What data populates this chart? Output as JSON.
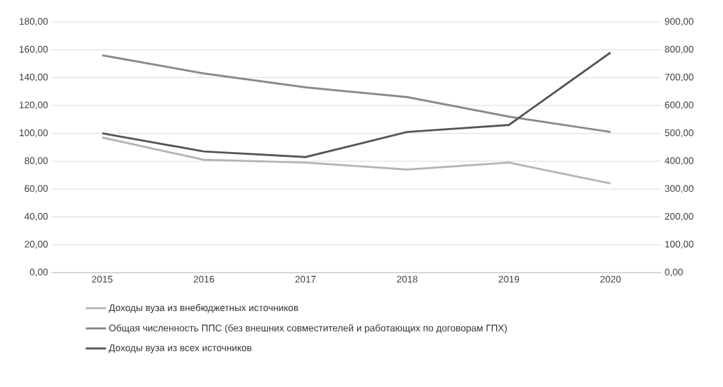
{
  "chart_data": {
    "type": "line",
    "categories": [
      "2015",
      "2016",
      "2017",
      "2018",
      "2019",
      "2020"
    ],
    "series": [
      {
        "name": "Доходы вуза из внебюджетных источников",
        "color": "#b4b4b4",
        "values": [
          97,
          81,
          79,
          74,
          79,
          64
        ]
      },
      {
        "name": "Общая численность ППС (без внешних совместителей и работающих по договорам ГПХ)",
        "color": "#8a8a8a",
        "values": [
          156,
          143,
          133,
          126,
          112,
          101
        ]
      },
      {
        "name": "Доходы вуза из всех источников",
        "color": "#555555",
        "axis": "y2",
        "values": [
          500,
          435,
          415,
          505,
          530,
          790
        ]
      }
    ],
    "ylim": [
      0,
      180
    ],
    "yticks": [
      {
        "value": 0,
        "label": "0,00"
      },
      {
        "value": 20,
        "label": "20,00"
      },
      {
        "value": 40,
        "label": "40,00"
      },
      {
        "value": 60,
        "label": "60,00"
      },
      {
        "value": 80,
        "label": "80,00"
      },
      {
        "value": 100,
        "label": "100,00"
      },
      {
        "value": 120,
        "label": "120,00"
      },
      {
        "value": 140,
        "label": "140,00"
      },
      {
        "value": 160,
        "label": "160,00"
      },
      {
        "value": 180,
        "label": "180,00"
      }
    ],
    "y2lim": [
      0,
      900
    ],
    "y2ticks": [
      {
        "value": 0,
        "label": "0,00"
      },
      {
        "value": 100,
        "label": "100,00"
      },
      {
        "value": 200,
        "label": "200,00"
      },
      {
        "value": 300,
        "label": "300,00"
      },
      {
        "value": 400,
        "label": "400,00"
      },
      {
        "value": 500,
        "label": "500,00"
      },
      {
        "value": 600,
        "label": "600,00"
      },
      {
        "value": 700,
        "label": "700,00"
      },
      {
        "value": 800,
        "label": "800,00"
      },
      {
        "value": 900,
        "label": "900,00"
      }
    ],
    "grid": "y",
    "legend": "bottom",
    "marker": "none",
    "line_style": "solid"
  }
}
